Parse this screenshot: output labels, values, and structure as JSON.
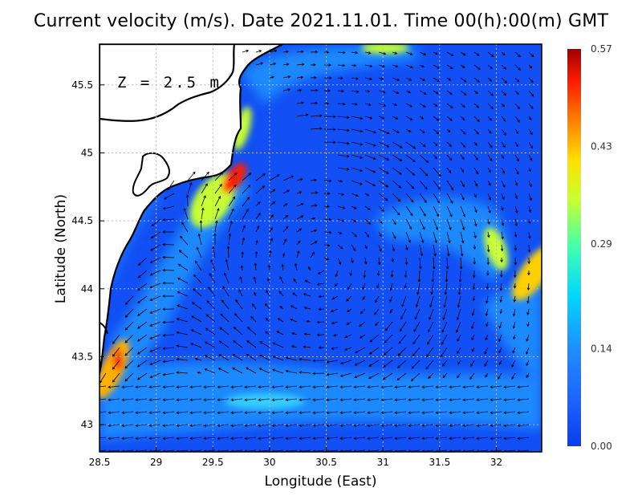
{
  "chart_data": {
    "type": "heatmap",
    "title": "Current velocity (m/s). Date 2021.11.01. Time 00(h):00(m) GMT",
    "xlabel": "Longitude (East)",
    "ylabel": "Latitude (North)",
    "annotation": "Z = 2.5 m",
    "xlim": [
      28.5,
      32.4
    ],
    "ylim": [
      42.8,
      45.8
    ],
    "x_ticks": [
      "28.5",
      "29",
      "29.5",
      "30",
      "30.5",
      "31",
      "31.5",
      "32"
    ],
    "x_tick_values": [
      28.5,
      29,
      29.5,
      30,
      30.5,
      31,
      31.5,
      32
    ],
    "y_ticks": [
      "43",
      "43.5",
      "44",
      "44.5",
      "45",
      "45.5"
    ],
    "y_tick_values": [
      43,
      43.5,
      44,
      44.5,
      45,
      45.5
    ],
    "grid": true,
    "colorbar": {
      "min": 0.0,
      "max": 0.57,
      "ticks": [
        "0.57",
        "0.43",
        "0.29",
        "0.14",
        "0.00"
      ],
      "tick_values": [
        0.57,
        0.43,
        0.29,
        0.14,
        0.0
      ],
      "colormap": [
        "#0a3cf0",
        "#1e90ff",
        "#00e0ff",
        "#40ffb0",
        "#c8ff30",
        "#ffe000",
        "#ff8000",
        "#ff1a00",
        "#a00000"
      ]
    },
    "colors": {
      "land": "#ffffff",
      "coastline": "#000000",
      "arrows": "#000000",
      "grid": "#bbbbbb"
    },
    "speed_maxima": [
      {
        "lon": 29.65,
        "lat": 44.78,
        "speed": 0.57
      },
      {
        "lon": 28.65,
        "lat": 43.45,
        "speed": 0.5
      },
      {
        "lon": 32.3,
        "lat": 44.2,
        "speed": 0.38
      },
      {
        "lon": 29.85,
        "lat": 45.2,
        "speed": 0.33
      },
      {
        "lon": 31.95,
        "lat": 44.3,
        "speed": 0.3
      }
    ]
  }
}
